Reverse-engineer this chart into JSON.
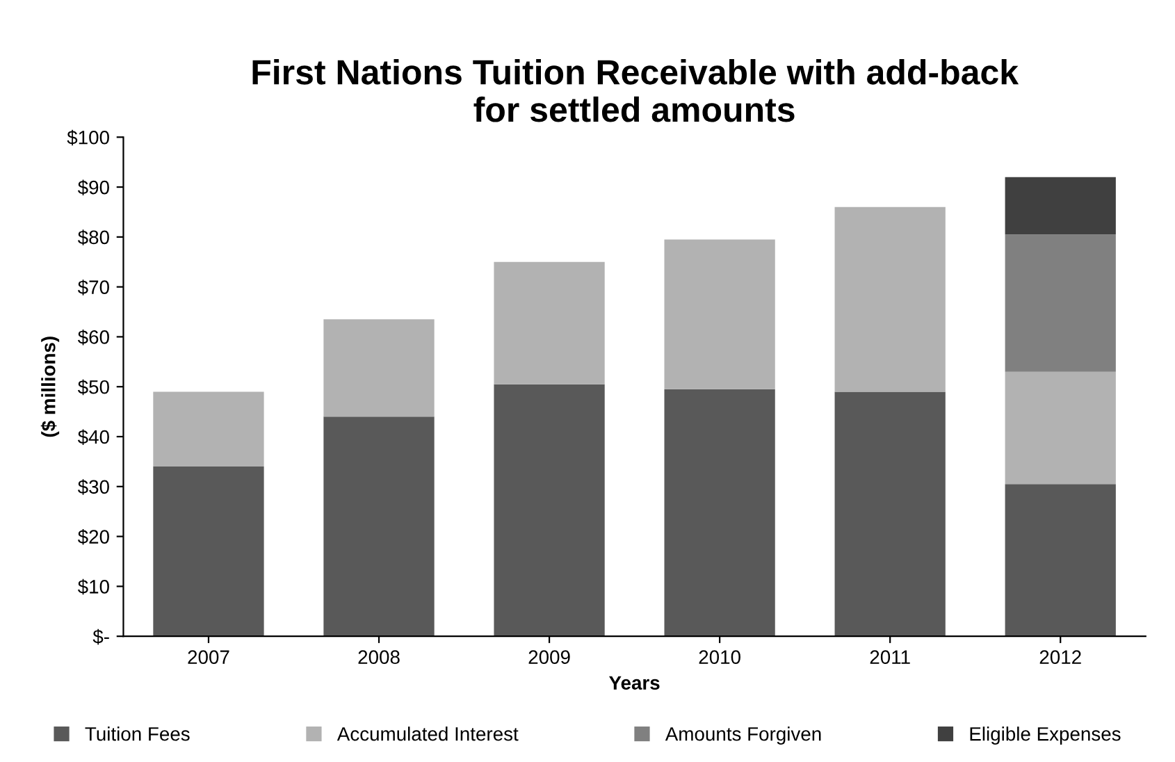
{
  "chart_data": {
    "type": "bar",
    "title": "First Nations Tuition Receivable with add-back\nfor settled amounts",
    "xlabel": "Years",
    "ylabel": "($ millions)",
    "categories": [
      "2007",
      "2008",
      "2009",
      "2010",
      "2011",
      "2012"
    ],
    "stacked": true,
    "series": [
      {
        "name": "Tuition Fees",
        "color": "#595959",
        "values": [
          34,
          44,
          50.5,
          49.5,
          49,
          30.5
        ]
      },
      {
        "name": "Accumulated Interest",
        "color": "#b2b2b2",
        "values": [
          15,
          19.5,
          24.5,
          30,
          37,
          22.5
        ]
      },
      {
        "name": "Amounts Forgiven",
        "color": "#808080",
        "values": [
          0,
          0,
          0,
          0,
          0,
          27.5
        ]
      },
      {
        "name": "Eligible Expenses",
        "color": "#404040",
        "values": [
          0,
          0,
          0,
          0,
          0,
          11.5
        ]
      }
    ],
    "ylim": [
      0,
      100
    ],
    "yticks": [
      {
        "value": 0,
        "label": "$-"
      },
      {
        "value": 10,
        "label": "$10"
      },
      {
        "value": 20,
        "label": "$20"
      },
      {
        "value": 30,
        "label": "$30"
      },
      {
        "value": 40,
        "label": "$40"
      },
      {
        "value": 50,
        "label": "$50"
      },
      {
        "value": 60,
        "label": "$60"
      },
      {
        "value": 70,
        "label": "$70"
      },
      {
        "value": 80,
        "label": "$80"
      },
      {
        "value": 90,
        "label": "$90"
      },
      {
        "value": 100,
        "label": "$100"
      }
    ],
    "grid": false,
    "legend": "bottom"
  }
}
